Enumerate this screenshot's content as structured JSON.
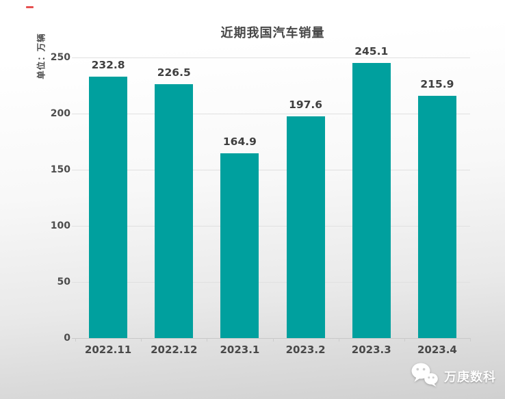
{
  "chart_data": {
    "type": "bar",
    "title": "近期我国汽车销量",
    "ylabel": "单位：万辆",
    "xlabel": "",
    "categories": [
      "2022.11",
      "2022.12",
      "2023.1",
      "2023.2",
      "2023.3",
      "2023.4"
    ],
    "values": [
      232.8,
      226.5,
      164.9,
      197.6,
      245.1,
      215.9
    ],
    "value_labels": [
      "232.8",
      "226.5",
      "164.9",
      "197.6",
      "245.1",
      "215.9"
    ],
    "ylim": [
      0,
      250
    ],
    "yticks": [
      0,
      50,
      100,
      150,
      200,
      250
    ],
    "grid": true,
    "legend": "none",
    "bar_color": "#00A09E"
  },
  "colors": {
    "bar": "#00A09E",
    "title_text": "#474747",
    "axis_text": "#4d4d4d",
    "gridline": "#e0e0e0",
    "baseline": "#c8c8c8",
    "background_top": "#ffffff",
    "background_bottom": "#d0d0d0",
    "top_left_dash": "#e65050",
    "watermark_text": "#ffffff"
  },
  "watermark": {
    "icon": "wechat-logo",
    "text": "万庚数科"
  }
}
